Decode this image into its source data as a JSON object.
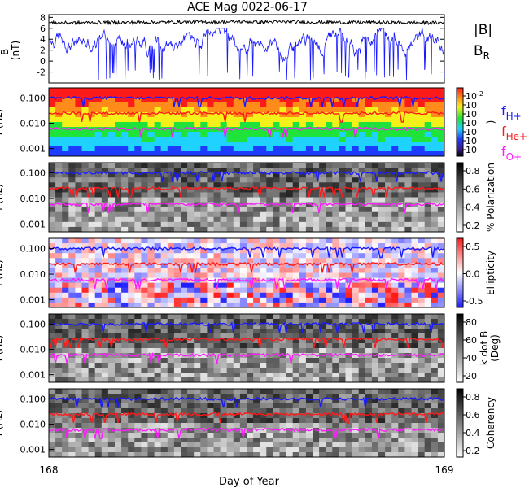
{
  "title": "ACE Mag 0022-06-17",
  "xlabel": "Day of Year",
  "x_ticks": [
    "168",
    "169"
  ],
  "colors": {
    "B_total": "#000000",
    "B_R": "#1a1aff",
    "H_plus": "#1a1aff",
    "He_plus": "#ff1a1a",
    "O_plus": "#ff1aff"
  },
  "panel_mag": {
    "ylabel": "B\n(nT)",
    "y_ticks": [
      "8",
      "6",
      "4",
      "2",
      "0",
      "-2"
    ],
    "legend": [
      "|B|",
      "B_R"
    ]
  },
  "panels": [
    {
      "name": "power",
      "ylabel": "f (Hz)",
      "y_ticks": [
        "0.100",
        "0.010",
        "0.001"
      ],
      "colorbar_ticks": [
        "10^-2",
        "10^",
        "10^",
        "10^",
        "10^",
        "10^",
        "10^"
      ],
      "colorbar_label": ")",
      "colormap": "rainbow",
      "legend": [
        "f_H+",
        "f_He+",
        "f_O+"
      ]
    },
    {
      "name": "polarization",
      "ylabel": "f (Hz)",
      "y_ticks": [
        "0.100",
        "0.010",
        "0.001"
      ],
      "colorbar_ticks": [
        "0.8",
        "0.6",
        "0.4",
        "0.2"
      ],
      "colorbar_label": "% Polarization",
      "colormap": "gray"
    },
    {
      "name": "ellipticity",
      "ylabel": "f (Hz)",
      "y_ticks": [
        "0.100",
        "0.010",
        "0.001"
      ],
      "colorbar_ticks": [
        "0.5",
        "0.0",
        "-0.5"
      ],
      "colorbar_label": "Ellipticity",
      "colormap": "redblue"
    },
    {
      "name": "kdotb",
      "ylabel": "f (Hz)",
      "y_ticks": [
        "0.100",
        "0.010",
        "0.001"
      ],
      "colorbar_ticks": [
        "80",
        "60",
        "40",
        "20"
      ],
      "colorbar_label": "k dot B\n(Deg)",
      "colormap": "gray"
    },
    {
      "name": "coherency",
      "ylabel": "f (Hz)",
      "y_ticks": [
        "0.100",
        "0.010",
        "0.001"
      ],
      "colorbar_ticks": [
        "0.8",
        "0.6",
        "0.4",
        "0.2"
      ],
      "colorbar_label": "Coherency",
      "colormap": "gray"
    }
  ],
  "chart_data": {
    "type": "line",
    "title": "ACE Mag 0022-06-17",
    "xlabel": "Day of Year",
    "xlim": [
      168,
      169
    ],
    "mag": {
      "ylim": [
        -4,
        8.5
      ],
      "series": [
        {
          "name": "|B|",
          "approx_level_nT": [
            6.5,
            7.5
          ]
        },
        {
          "name": "B_R",
          "approx_range_nT": [
            -3.5,
            6
          ]
        }
      ]
    },
    "spectral_panels": {
      "y_scale": "log",
      "ylim_Hz": [
        0.0005,
        0.25
      ],
      "gyrofrequency_lines": [
        {
          "name": "f_H+",
          "approx_Hz": 0.1
        },
        {
          "name": "f_He+",
          "approx_Hz": 0.025
        },
        {
          "name": "f_O+",
          "approx_Hz": 0.006
        }
      ]
    }
  }
}
